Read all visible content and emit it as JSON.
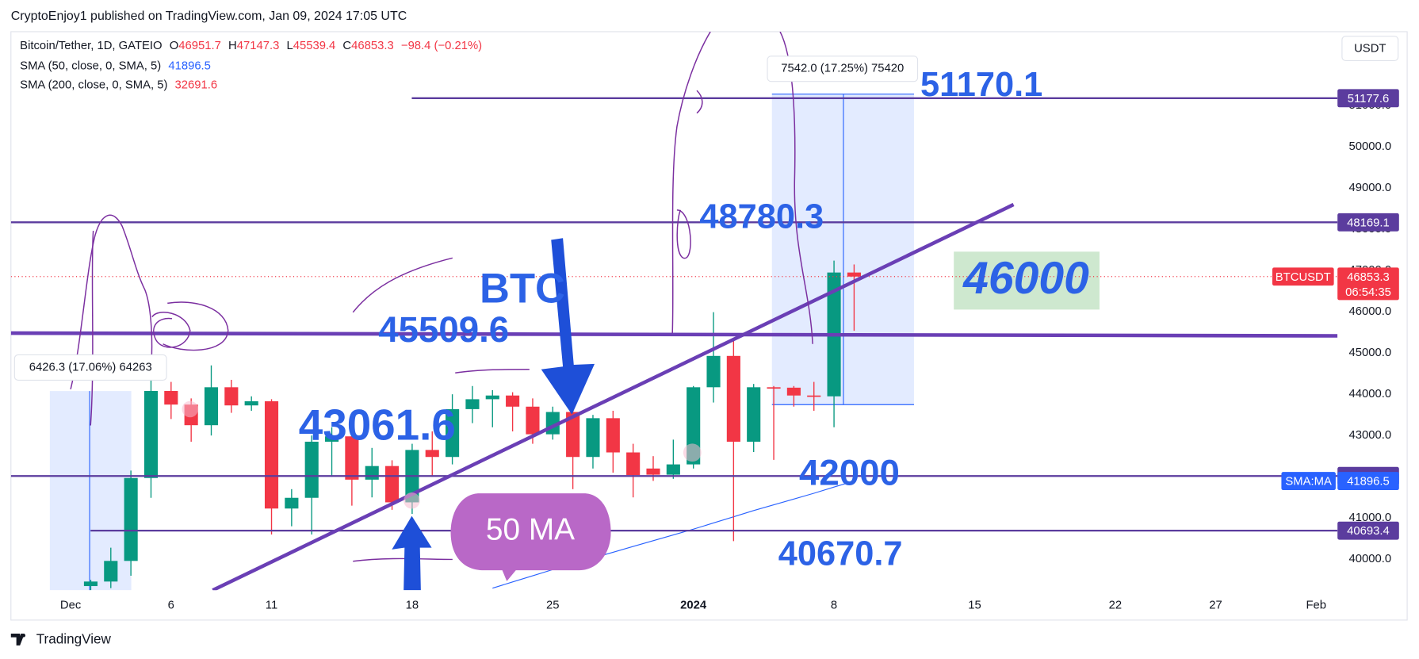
{
  "chart_data": {
    "type": "candlestick",
    "publish_note": "CryptoEnjoy1 published on TradingView.com, Jan 09, 2024 17:05 UTC",
    "symbol": "Bitcoin/Tether, 1D, GATEIO",
    "legend_labels": [
      "O",
      "H",
      "L",
      "C"
    ],
    "change": "−98.4 (−0.21%)",
    "currency": "USDT",
    "ticker": "BTCUSDT",
    "countdown": "06:54:35",
    "brand": "TradingView",
    "up_color": "#089981",
    "down_color": "#f23645",
    "categories": [
      null,
      null,
      null,
      "Dec",
      null,
      null,
      null,
      null,
      "6",
      null,
      null,
      null,
      null,
      "11",
      null,
      null,
      null,
      null,
      null,
      null,
      "18",
      null,
      null,
      null,
      null,
      null,
      null,
      "25",
      null,
      null,
      null,
      null,
      null,
      null,
      "2024",
      null,
      null,
      null,
      null,
      null,
      null,
      "8",
      null,
      null,
      null,
      null,
      null,
      null,
      "15",
      null,
      null,
      null,
      null,
      null,
      null,
      "22",
      null,
      null,
      null,
      null,
      "27",
      null,
      null,
      null,
      null,
      "Feb",
      null
    ],
    "open": [
      null,
      null,
      null,
      null,
      39350,
      39460,
      39960,
      41970,
      44080,
      43750,
      43250,
      44170,
      43730,
      43830,
      41230,
      41490,
      42850,
      42980,
      41930,
      42260,
      41380,
      42650,
      42480,
      43640,
      43880,
      43970,
      43700,
      43030,
      43570,
      42480,
      43420,
      42590,
      42200,
      42050,
      42300,
      44170,
      44930,
      42850,
      44170,
      44160,
      43970,
      43950,
      46951.7,
      null,
      null,
      null,
      null,
      null,
      null,
      null,
      null,
      null,
      null,
      null,
      null,
      null,
      null,
      null,
      null,
      null,
      null,
      null,
      null,
      null,
      null,
      null,
      null
    ],
    "high": [
      null,
      null,
      null,
      null,
      39500,
      40280,
      42150,
      44670,
      44300,
      43900,
      44700,
      44350,
      43950,
      43880,
      41700,
      43000,
      43200,
      43300,
      42700,
      42400,
      42800,
      43100,
      44000,
      44200,
      44100,
      44050,
      43900,
      43700,
      43650,
      43500,
      43600,
      42800,
      42500,
      42900,
      44200,
      45990,
      45300,
      44250,
      44200,
      44200,
      44300,
      47240,
      47147.3,
      null,
      null,
      null,
      null,
      null,
      null,
      null,
      null,
      null,
      null,
      null,
      null,
      null,
      null,
      null,
      null,
      null,
      null,
      null,
      null,
      null,
      null,
      null,
      null
    ],
    "low": [
      null,
      null,
      null,
      null,
      39250,
      39300,
      39600,
      41490,
      43400,
      42850,
      43000,
      43550,
      43600,
      40600,
      40800,
      40600,
      42000,
      41300,
      41500,
      41200,
      41100,
      42000,
      42300,
      43300,
      43200,
      43100,
      42800,
      42900,
      41700,
      42200,
      42100,
      41500,
      41900,
      41950,
      42200,
      43800,
      40440,
      42600,
      42410,
      43700,
      43600,
      43200,
      45539.4,
      null,
      null,
      null,
      null,
      null,
      null,
      null,
      null,
      null,
      null,
      null,
      null,
      null,
      null,
      null,
      null,
      null,
      null,
      null,
      null,
      null,
      null,
      null,
      null
    ],
    "close": [
      null,
      null,
      null,
      null,
      39460,
      39960,
      41970,
      44080,
      43750,
      43250,
      44170,
      43730,
      43830,
      41230,
      41490,
      42850,
      42980,
      41930,
      42260,
      41380,
      42650,
      42480,
      43640,
      43880,
      43970,
      43700,
      43030,
      43570,
      42480,
      43420,
      42590,
      42040,
      42050,
      42300,
      44170,
      44930,
      42850,
      44170,
      44160,
      43970,
      43950,
      46951.7,
      46853.3,
      null,
      null,
      null,
      null,
      null,
      null,
      null,
      null,
      null,
      null,
      null,
      null,
      null,
      null,
      null,
      null,
      null,
      null,
      null,
      null,
      null,
      null,
      null,
      null
    ],
    "indicators": [
      {
        "label": "SMA (50, close, 0, SMA, 5)",
        "last": 41896.5,
        "color": "#2962ff",
        "badge": "SMA:MA",
        "values": [
          null,
          null,
          null,
          null,
          null,
          null,
          null,
          null,
          null,
          null,
          null,
          null,
          null,
          null,
          null,
          null,
          null,
          null,
          null,
          null,
          null,
          null,
          null,
          null,
          39300,
          39450,
          39600,
          39750,
          39890,
          40030,
          40170,
          40310,
          40450,
          40590,
          40730,
          40880,
          41030,
          41180,
          41320,
          41460,
          41600,
          41750,
          41896.5,
          null,
          null,
          null,
          null,
          null,
          null,
          null,
          null,
          null,
          null,
          null,
          null,
          null,
          null,
          null,
          null,
          null,
          null,
          null,
          null,
          null,
          null,
          null,
          null
        ]
      },
      {
        "label": "SMA (200, close, 0, SMA, 5)",
        "last": 32691.6,
        "color": "#f23645"
      }
    ],
    "price_lines": [
      51177.6,
      48169.1,
      42019.2,
      40693.4
    ],
    "price_line_color": "#5b3c9e",
    "annotations": [
      "51170.1",
      "48780.3",
      "45509.6",
      "43061.6",
      "42000",
      "40670.7",
      "BTC",
      "46000",
      "50 MA"
    ],
    "range_labels": [
      "6426.3 (17.06%) 64263",
      "7542.0 (17.25%) 75420"
    ],
    "ylim": [
      39250,
      52790
    ],
    "yticks": [
      {
        "value": 40000,
        "label": "40000.0"
      },
      {
        "value": 41000,
        "label": "41000.0"
      },
      {
        "value": 42000,
        "label": "42000.0"
      },
      {
        "value": 43000,
        "label": "43000.0"
      },
      {
        "value": 44000,
        "label": "44000.0"
      },
      {
        "value": 45000,
        "label": "45000.0"
      },
      {
        "value": 46000,
        "label": "46000.0"
      },
      {
        "value": 47000,
        "label": "47000.0"
      },
      {
        "value": 48000,
        "label": "48000.0"
      },
      {
        "value": 49000,
        "label": "49000.0"
      },
      {
        "value": 50000,
        "label": "50000.0"
      },
      {
        "value": 51000,
        "label": "51000.0"
      }
    ],
    "grid": false
  }
}
